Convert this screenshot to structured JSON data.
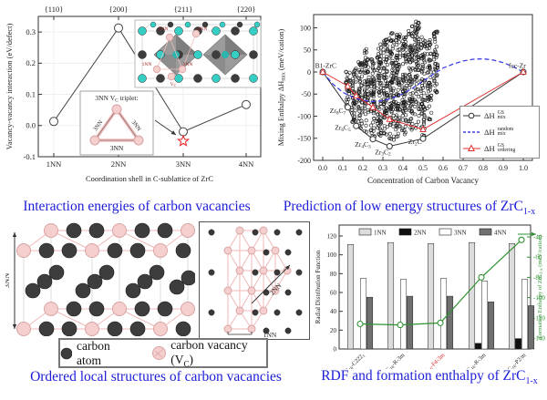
{
  "captions": {
    "interaction": "Interaction energies of carbon vacancies",
    "prediction_pre": "Prediction of low energy structures of ZrC",
    "prediction_sub": "1-x",
    "ordered": "Ordered local structures of carbon vacancies",
    "rdf_pre": "RDF and formation enthalpy of ZrC",
    "rdf_sub": "1-x"
  },
  "colors": {
    "caption_blue": "#1d1dd9",
    "accent_red": "#e02020",
    "accent_green": "#2f9231",
    "random_blue": "#4040e8",
    "zr_atom_cyan": "#35cfc6",
    "carbon_dark": "#3d3d3d",
    "vacancy_pink": "#f5cece",
    "vacancy_pink_stroke": "#d9a3a3"
  },
  "mixing_legend": [
    {
      "pre": "ΔH",
      "sup": "GS",
      "sub": "mix"
    },
    {
      "pre": "ΔH",
      "sup": "random",
      "sub": "mix"
    },
    {
      "pre": "ΔH",
      "sup": "GS",
      "sub": "ordering"
    }
  ],
  "ordered_panel": {
    "label_3nn": "3NN",
    "label_2nn": "2NN",
    "label_1nn": "1NN",
    "legend_atom": "carbon atom",
    "legend_vac_pre": "carbon vacancy (V",
    "legend_vac_sub": "C",
    "legend_vac_post": ")"
  },
  "chart_data": [
    {
      "type": "line",
      "name": "vacancy_vacancy_interaction",
      "xlabel": "Coordination shell in C-sublattice of ZrC",
      "ylabel": "Vacancy-vacancy interaction (eV/defect)",
      "categories": [
        "1NN",
        "2NN",
        "3NN",
        "4NN"
      ],
      "top_axis_labels": [
        "{110}",
        "{200}",
        "{211}",
        "{220}"
      ],
      "values": [
        0.013,
        0.313,
        -0.02,
        0.067
      ],
      "special_point": {
        "category": "3NN",
        "value": -0.05,
        "marker": "red-open-star"
      },
      "ylim": [
        -0.1,
        0.35
      ],
      "yticks": [
        -0.1,
        0,
        0.1,
        0.2,
        0.3
      ],
      "grid": true,
      "inset_triplet": {
        "title_pre": "3NN V",
        "title_sub": "C",
        "title_post": " triplet:",
        "side_label": "3NN"
      },
      "inset_crystal": {
        "labels": [
          "3NN",
          "4NN",
          "1NN",
          "2NN"
        ],
        "vacancy_label": "V_C_"
      }
    },
    {
      "type": "scatter",
      "name": "mixing_enthalpy_vs_vacancy_concentration",
      "xlabel": "Concentration of Carbon Vacancy",
      "ylabel_rich": "Mixing Enthalpy ΔH_mix_ (meV/cation)",
      "xticks": [
        0,
        0.1,
        0.2,
        0.3,
        0.4,
        0.5,
        0.6,
        0.7,
        0.8,
        0.9,
        1.0
      ],
      "yticks": [
        -200,
        -150,
        -100,
        -50,
        0,
        50,
        100
      ],
      "xlim": [
        -0.05,
        1.05
      ],
      "ylim": [
        -200,
        130
      ],
      "series": [
        {
          "name": "dHmix_GS",
          "style": "solid-open-circle",
          "color": "#333333",
          "points": [
            [
              0,
              0
            ],
            [
              0.125,
              -80
            ],
            [
              0.167,
              -122
            ],
            [
              0.25,
              -152
            ],
            [
              0.333,
              -168
            ],
            [
              0.5,
              -151
            ],
            [
              1,
              0
            ]
          ]
        },
        {
          "name": "dHmix_random",
          "style": "dashed",
          "color": "#4040e8",
          "points": [
            [
              0,
              0
            ],
            [
              0.05,
              -27
            ],
            [
              0.1,
              -46
            ],
            [
              0.15,
              -57
            ],
            [
              0.2,
              -64
            ],
            [
              0.25,
              -67
            ],
            [
              0.3,
              -65
            ],
            [
              0.35,
              -59
            ],
            [
              0.4,
              -49
            ],
            [
              0.45,
              -36
            ],
            [
              0.5,
              -21
            ],
            [
              0.55,
              -5
            ],
            [
              0.6,
              9
            ],
            [
              0.65,
              18
            ],
            [
              0.7,
              25
            ],
            [
              0.75,
              29
            ],
            [
              0.8,
              30
            ],
            [
              0.85,
              27
            ],
            [
              0.9,
              21
            ],
            [
              0.95,
              12
            ],
            [
              1,
              0
            ]
          ]
        },
        {
          "name": "dHordering_GS",
          "style": "solid-open-triangle",
          "color": "#e03030",
          "points": [
            [
              0,
              0
            ],
            [
              0.125,
              -32
            ],
            [
              0.167,
              -54
            ],
            [
              0.25,
              -80
            ],
            [
              0.333,
              -107
            ],
            [
              0.5,
              -130
            ],
            [
              1,
              0
            ]
          ]
        }
      ],
      "scatter_clusters": [
        {
          "x": 0.125,
          "ymin": -78,
          "ymax": 3,
          "n": 28
        },
        {
          "x": 0.156,
          "ymin": -116,
          "ymax": 12,
          "n": 45
        },
        {
          "x": 0.188,
          "ymin": -130,
          "ymax": 24,
          "n": 55
        },
        {
          "x": 0.219,
          "ymin": -138,
          "ymax": 55,
          "n": 62
        },
        {
          "x": 0.25,
          "ymin": -148,
          "ymax": 33,
          "n": 62
        },
        {
          "x": 0.281,
          "ymin": -147,
          "ymax": 66,
          "n": 72
        },
        {
          "x": 0.313,
          "ymin": -151,
          "ymax": 76,
          "n": 80
        },
        {
          "x": 0.344,
          "ymin": -156,
          "ymax": 90,
          "n": 84
        },
        {
          "x": 0.375,
          "ymin": -149,
          "ymax": 91,
          "n": 84
        },
        {
          "x": 0.406,
          "ymin": -142,
          "ymax": 83,
          "n": 80
        },
        {
          "x": 0.438,
          "ymin": -137,
          "ymax": 105,
          "n": 80
        },
        {
          "x": 0.469,
          "ymin": -131,
          "ymax": 122,
          "n": 74
        },
        {
          "x": 0.5,
          "ymin": -147,
          "ymax": 86,
          "n": 70
        },
        {
          "x": 0.531,
          "ymin": -110,
          "ymax": 81,
          "n": 55
        },
        {
          "x": 0.563,
          "ymin": -56,
          "ymax": 93,
          "n": 46
        }
      ],
      "annotations": [
        {
          "rich": "B1-ZrC",
          "x": 0.015,
          "y": 14
        },
        {
          "rich": "fcc-Zr",
          "x": 0.97,
          "y": 14
        },
        {
          "rich": "Zr_8_C_7_",
          "x": 0.075,
          "y": -88
        },
        {
          "rich": "Zr_6_C_5_",
          "x": 0.1,
          "y": -126
        },
        {
          "rich": "Zr_4_C_3_",
          "x": 0.2,
          "y": -164
        },
        {
          "rich": "Zr_3_C_2_",
          "x": 0.3,
          "y": -181
        },
        {
          "rich": "Zr_2_C",
          "x": 0.46,
          "y": -158
        }
      ]
    },
    {
      "type": "bar",
      "name": "rdf_and_formation_enthalpy",
      "ylabel_left": "Radial Distribution Function",
      "ylabel_right_rich": "Formation Enthalpy of ZrC_1-x_ (meV/cation)",
      "legend": [
        "1NN",
        "2NN",
        "3NN",
        "4NN"
      ],
      "categories_rich": [
        "Zr_32_C_16_-C222_1_",
        "Zr_32_C_16_-R-3m",
        "Zr_32_C_16_-Fd-3m",
        "Zr_32_C_16_-R-3m",
        "Zr_32_C_16_-P2/m"
      ],
      "highlight_index": 2,
      "series": [
        {
          "name": "1NN",
          "color": "#dcdcdc",
          "values": [
            111,
            113,
            112,
            113,
            112
          ]
        },
        {
          "name": "2NN",
          "color": "#111111",
          "values": [
            0,
            0,
            0,
            6,
            11
          ]
        },
        {
          "name": "3NN",
          "color": "#ffffff",
          "values": [
            75,
            74,
            75,
            72,
            74
          ]
        },
        {
          "name": "4NN",
          "color": "#6f6f6f",
          "values": [
            55,
            56,
            56,
            50,
            46
          ]
        }
      ],
      "line_right": {
        "name": "formation_enthalpy",
        "color": "#2f9231",
        "values": [
          -126,
          -127,
          -125,
          -80,
          -43
        ]
      },
      "yticks_left": [
        0,
        20,
        40,
        60,
        80,
        100,
        120
      ],
      "yticks_right": [
        -40,
        -60,
        -80,
        -100,
        -120,
        -140
      ]
    }
  ]
}
